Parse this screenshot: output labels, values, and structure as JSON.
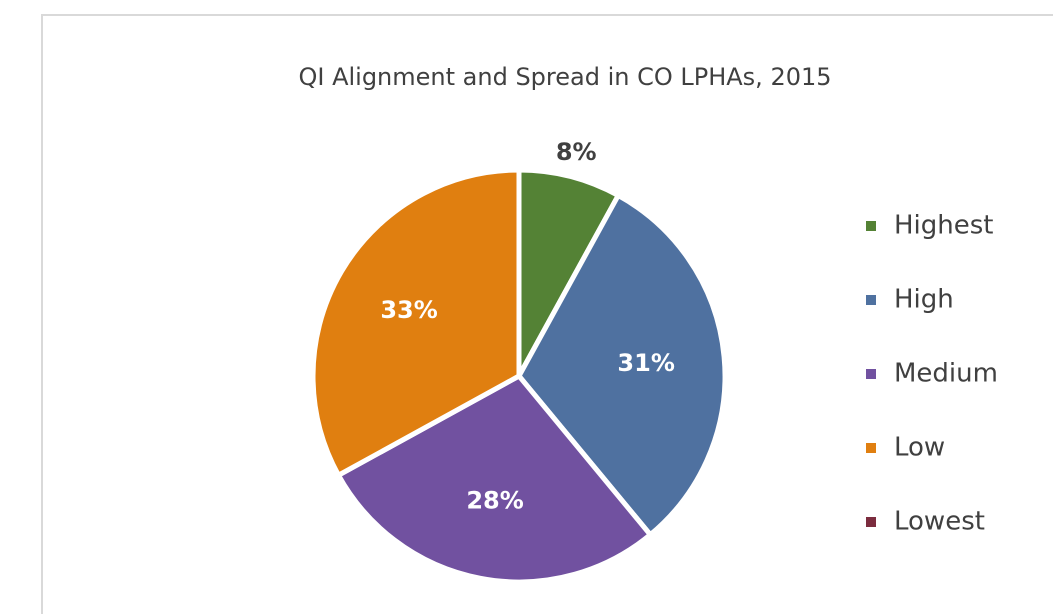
{
  "chart_data": {
    "type": "pie",
    "title": "QI Alignment and Spread in CO LPHAs, 2015",
    "categories": [
      "Highest",
      "High",
      "Medium",
      "Low",
      "Lowest"
    ],
    "values": [
      8,
      31,
      28,
      33,
      0
    ],
    "value_labels": [
      "8%",
      "31%",
      "28%",
      "33%",
      null
    ],
    "colors": [
      "#548235",
      "#4f71a0",
      "#7151a0",
      "#e07f10",
      "#7b2c3e"
    ],
    "legend": "right"
  }
}
